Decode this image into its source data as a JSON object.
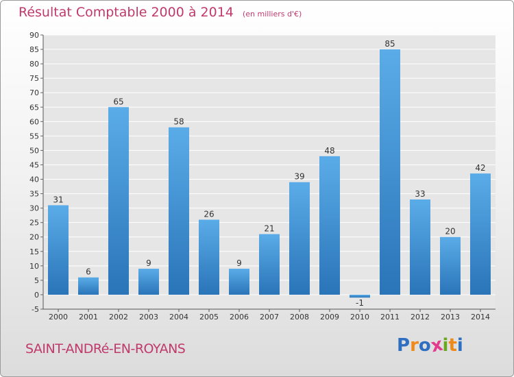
{
  "header": {
    "title": "Résultat Comptable 2000 à 2014",
    "unit": "(en milliers d'€)"
  },
  "footer": {
    "commune": "SAINT-ANDRé-EN-ROYANS",
    "logo_letters": [
      "P",
      "r",
      "o",
      "x",
      "i",
      "t",
      "i"
    ]
  },
  "colors": {
    "bar": "#3d8fd6",
    "title": "#c0396b",
    "logo": [
      "#2f6fc2",
      "#ee8a1a",
      "#2f6fc2",
      "#e23a8d",
      "#6aa821",
      "#ee8a1a",
      "#2f6fc2"
    ]
  },
  "chart_data": {
    "type": "bar",
    "title": "Résultat Comptable 2000 à 2014",
    "subtitle": "(en milliers d'€)",
    "xlabel": "",
    "ylabel": "",
    "categories": [
      "2000",
      "2001",
      "2002",
      "2003",
      "2004",
      "2005",
      "2006",
      "2007",
      "2008",
      "2009",
      "2010",
      "2011",
      "2012",
      "2013",
      "2014"
    ],
    "values": [
      31,
      6,
      65,
      9,
      58,
      26,
      9,
      21,
      39,
      48,
      -1,
      85,
      33,
      20,
      42
    ],
    "data_labels": [
      "31",
      "6",
      "65",
      "9",
      "58",
      "26",
      "9",
      "21",
      "39",
      "48",
      "-1",
      "85",
      "33",
      "20",
      "42"
    ],
    "ylim": [
      -5,
      90
    ],
    "yticks": [
      -5,
      0,
      5,
      10,
      15,
      20,
      25,
      30,
      35,
      40,
      45,
      50,
      55,
      60,
      65,
      70,
      75,
      80,
      85,
      90
    ],
    "grid": true,
    "legend": "none"
  }
}
